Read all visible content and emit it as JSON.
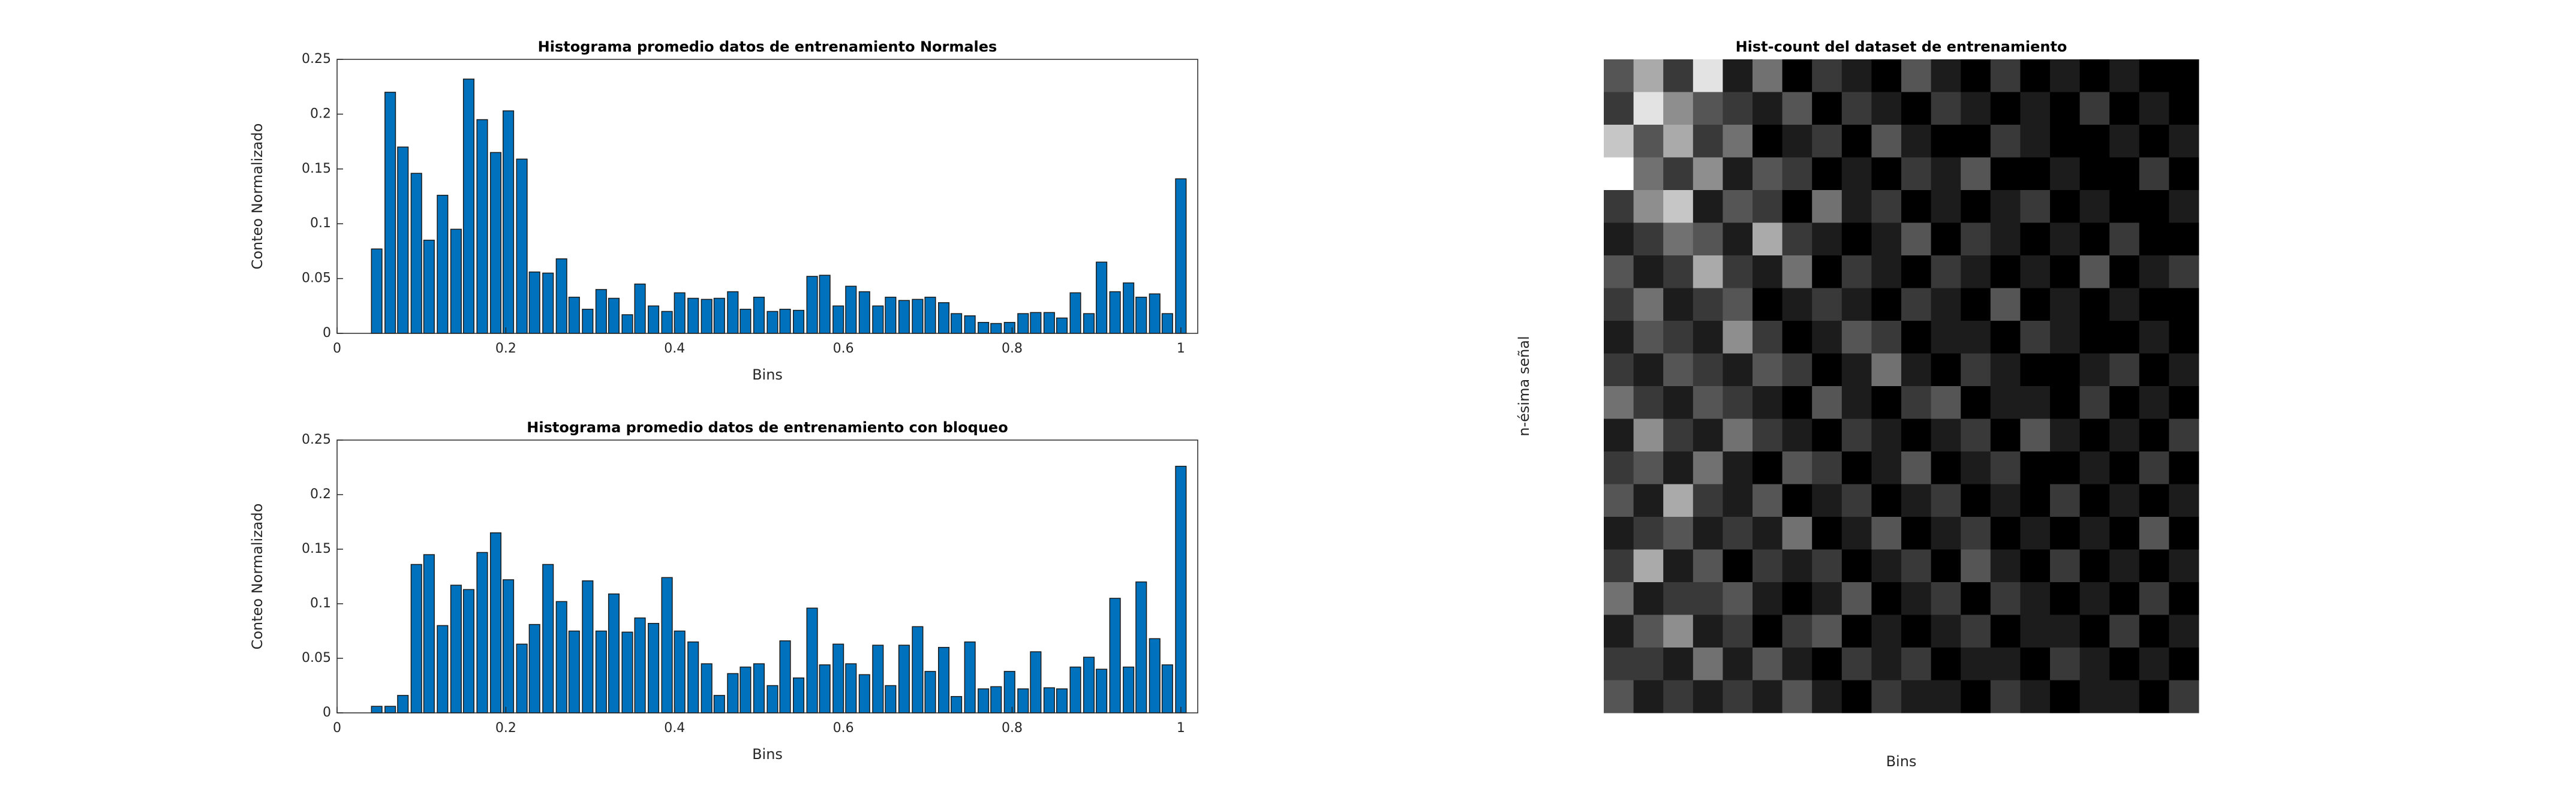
{
  "chart_data": [
    {
      "type": "bar",
      "title": "Histograma promedio datos de entrenamiento Normales",
      "xlabel": "Bins",
      "ylabel": "Conteo Normalizado",
      "color": "#0072bd",
      "x": [
        0.047,
        0.063,
        0.078,
        0.094,
        0.109,
        0.125,
        0.141,
        0.156,
        0.172,
        0.188,
        0.203,
        0.219,
        0.234,
        0.25,
        0.266,
        0.281,
        0.297,
        0.313,
        0.328,
        0.344,
        0.359,
        0.375,
        0.391,
        0.406,
        0.422,
        0.438,
        0.453,
        0.469,
        0.484,
        0.5,
        0.516,
        0.531,
        0.547,
        0.563,
        0.578,
        0.594,
        0.609,
        0.625,
        0.641,
        0.656,
        0.672,
        0.688,
        0.703,
        0.719,
        0.734,
        0.75,
        0.766,
        0.781,
        0.797,
        0.813,
        0.828,
        0.844,
        0.859,
        0.875,
        0.891,
        0.906,
        0.922,
        0.938,
        0.953,
        0.969,
        0.984,
        1
      ],
      "values": [
        0.077,
        0.22,
        0.17,
        0.146,
        0.085,
        0.126,
        0.095,
        0.232,
        0.195,
        0.165,
        0.203,
        0.159,
        0.056,
        0.055,
        0.068,
        0.033,
        0.022,
        0.04,
        0.032,
        0.017,
        0.045,
        0.025,
        0.02,
        0.037,
        0.032,
        0.031,
        0.032,
        0.038,
        0.022,
        0.033,
        0.02,
        0.022,
        0.021,
        0.052,
        0.053,
        0.025,
        0.043,
        0.038,
        0.025,
        0.033,
        0.03,
        0.031,
        0.033,
        0.028,
        0.018,
        0.016,
        0.01,
        0.009,
        0.01,
        0.018,
        0.019,
        0.019,
        0.014,
        0.037,
        0.018,
        0.065,
        0.038,
        0.046,
        0.033,
        0.036,
        0.018,
        0.141
      ],
      "xlim": [
        0,
        1.02
      ],
      "xticks": [
        0,
        0.2,
        0.4,
        0.6,
        0.8,
        1
      ],
      "ylim": [
        0,
        0.25
      ],
      "yticks": [
        0,
        0.05,
        0.1,
        0.15,
        0.2,
        0.25
      ]
    },
    {
      "type": "bar",
      "title": "Histograma promedio datos de entrenamiento con bloqueo",
      "xlabel": "Bins",
      "ylabel": "Conteo Normalizado",
      "color": "#0072bd",
      "x": [
        0.047,
        0.063,
        0.078,
        0.094,
        0.109,
        0.125,
        0.141,
        0.156,
        0.172,
        0.188,
        0.203,
        0.219,
        0.234,
        0.25,
        0.266,
        0.281,
        0.297,
        0.313,
        0.328,
        0.344,
        0.359,
        0.375,
        0.391,
        0.406,
        0.422,
        0.438,
        0.453,
        0.469,
        0.484,
        0.5,
        0.516,
        0.531,
        0.547,
        0.563,
        0.578,
        0.594,
        0.609,
        0.625,
        0.641,
        0.656,
        0.672,
        0.688,
        0.703,
        0.719,
        0.734,
        0.75,
        0.766,
        0.781,
        0.797,
        0.813,
        0.828,
        0.844,
        0.859,
        0.875,
        0.891,
        0.906,
        0.922,
        0.938,
        0.953,
        0.969,
        0.984,
        1
      ],
      "values": [
        0.006,
        0.006,
        0.016,
        0.136,
        0.145,
        0.08,
        0.117,
        0.113,
        0.147,
        0.165,
        0.122,
        0.063,
        0.081,
        0.136,
        0.102,
        0.075,
        0.121,
        0.075,
        0.109,
        0.074,
        0.087,
        0.082,
        0.124,
        0.075,
        0.065,
        0.045,
        0.016,
        0.036,
        0.042,
        0.045,
        0.025,
        0.066,
        0.032,
        0.096,
        0.044,
        0.063,
        0.045,
        0.035,
        0.062,
        0.025,
        0.062,
        0.079,
        0.038,
        0.06,
        0.015,
        0.065,
        0.022,
        0.024,
        0.038,
        0.022,
        0.056,
        0.023,
        0.022,
        0.042,
        0.051,
        0.04,
        0.105,
        0.042,
        0.12,
        0.068,
        0.044,
        0.226
      ],
      "xlim": [
        0,
        1.02
      ],
      "xticks": [
        0,
        0.2,
        0.4,
        0.6,
        0.8,
        1
      ],
      "ylim": [
        0,
        0.25
      ],
      "yticks": [
        0,
        0.05,
        0.1,
        0.15,
        0.2,
        0.25
      ]
    },
    {
      "type": "heatmap",
      "title": "Hist-count del dataset de entrenamiento",
      "xlabel": "Bins",
      "ylabel": "n-ésima señal",
      "colormap": "gray",
      "vlim": [
        0,
        9
      ],
      "values": [
        [
          3,
          6,
          2,
          8,
          1,
          4,
          0,
          2,
          1,
          0,
          3,
          1,
          0,
          2,
          0,
          1,
          0,
          1,
          0,
          0
        ],
        [
          2,
          8,
          5,
          3,
          2,
          1,
          3,
          0,
          2,
          1,
          0,
          2,
          1,
          0,
          1,
          0,
          2,
          0,
          1,
          0
        ],
        [
          7,
          3,
          6,
          2,
          4,
          0,
          1,
          2,
          0,
          3,
          1,
          0,
          0,
          2,
          1,
          0,
          0,
          1,
          0,
          1
        ],
        [
          9,
          4,
          2,
          5,
          1,
          3,
          2,
          0,
          1,
          0,
          2,
          1,
          3,
          0,
          0,
          1,
          0,
          0,
          2,
          0
        ],
        [
          2,
          5,
          7,
          1,
          3,
          2,
          0,
          4,
          1,
          2,
          0,
          1,
          0,
          1,
          2,
          0,
          1,
          0,
          0,
          1
        ],
        [
          1,
          2,
          4,
          3,
          1,
          6,
          2,
          1,
          0,
          1,
          3,
          0,
          2,
          1,
          0,
          1,
          0,
          2,
          0,
          0
        ],
        [
          3,
          1,
          2,
          6,
          2,
          1,
          4,
          0,
          2,
          1,
          0,
          2,
          1,
          0,
          1,
          0,
          3,
          0,
          1,
          2
        ],
        [
          2,
          4,
          1,
          2,
          3,
          0,
          1,
          2,
          1,
          0,
          2,
          1,
          0,
          3,
          0,
          1,
          0,
          1,
          0,
          0
        ],
        [
          1,
          3,
          2,
          1,
          5,
          2,
          0,
          1,
          3,
          2,
          0,
          1,
          1,
          0,
          2,
          1,
          0,
          0,
          1,
          0
        ],
        [
          2,
          1,
          3,
          2,
          1,
          3,
          2,
          0,
          1,
          4,
          1,
          0,
          2,
          1,
          0,
          0,
          1,
          2,
          0,
          1
        ],
        [
          4,
          2,
          1,
          3,
          2,
          1,
          0,
          3,
          1,
          0,
          2,
          3,
          0,
          1,
          1,
          0,
          2,
          0,
          1,
          0
        ],
        [
          1,
          5,
          2,
          1,
          4,
          2,
          1,
          0,
          2,
          1,
          0,
          1,
          2,
          0,
          3,
          1,
          0,
          1,
          0,
          2
        ],
        [
          2,
          3,
          1,
          4,
          1,
          0,
          3,
          2,
          0,
          1,
          3,
          0,
          1,
          2,
          0,
          0,
          1,
          0,
          2,
          0
        ],
        [
          3,
          1,
          6,
          2,
          1,
          3,
          0,
          1,
          2,
          0,
          1,
          2,
          0,
          1,
          0,
          2,
          0,
          1,
          0,
          1
        ],
        [
          1,
          2,
          3,
          1,
          2,
          1,
          4,
          0,
          1,
          3,
          0,
          1,
          2,
          0,
          1,
          0,
          1,
          0,
          3,
          0
        ],
        [
          2,
          6,
          1,
          3,
          0,
          2,
          1,
          2,
          0,
          1,
          2,
          0,
          3,
          1,
          0,
          2,
          0,
          1,
          0,
          1
        ],
        [
          4,
          1,
          2,
          2,
          3,
          1,
          0,
          1,
          3,
          0,
          1,
          2,
          0,
          2,
          1,
          0,
          1,
          0,
          2,
          0
        ],
        [
          1,
          3,
          5,
          1,
          2,
          0,
          2,
          3,
          0,
          1,
          0,
          1,
          2,
          0,
          1,
          1,
          0,
          2,
          0,
          1
        ],
        [
          2,
          2,
          1,
          4,
          1,
          3,
          1,
          0,
          2,
          1,
          2,
          0,
          1,
          1,
          0,
          2,
          1,
          0,
          1,
          0
        ],
        [
          3,
          1,
          2,
          1,
          2,
          1,
          3,
          1,
          0,
          2,
          1,
          1,
          0,
          2,
          1,
          0,
          1,
          1,
          0,
          2
        ]
      ]
    }
  ]
}
